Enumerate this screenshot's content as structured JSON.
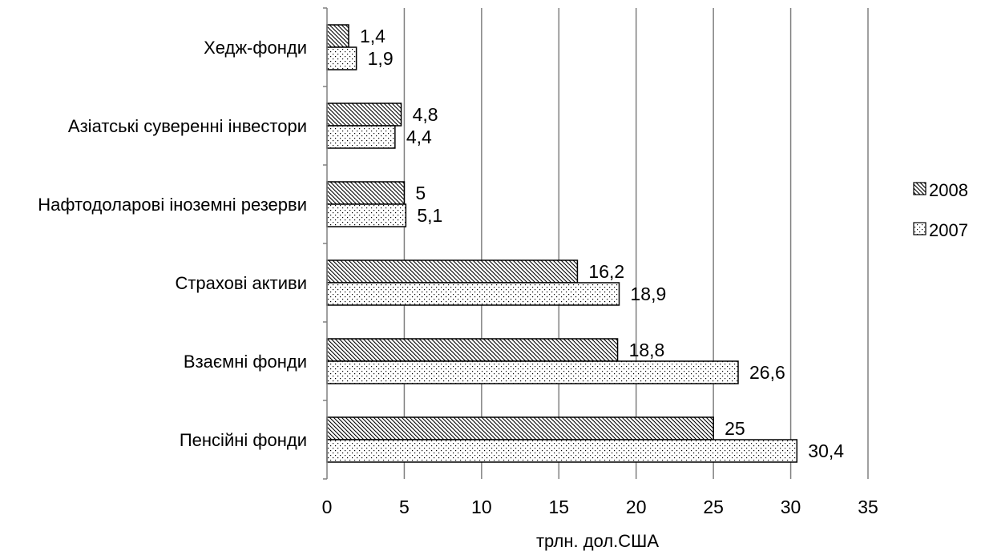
{
  "chart_data": {
    "type": "bar",
    "orientation": "horizontal",
    "categories": [
      "Хедж-фонди",
      "Азіатські суверенні інвестори",
      "Нафтодоларові іноземні резерви",
      "Страхові активи",
      "Взаємні фонди",
      "Пенсійні фонди"
    ],
    "series": [
      {
        "name": "2008",
        "pattern": "diagonal-hatch",
        "values": [
          1.4,
          4.8,
          5,
          16.2,
          18.8,
          25
        ],
        "labels": [
          "1,4",
          "4,8",
          "5",
          "16,2",
          "18,8",
          "25"
        ]
      },
      {
        "name": "2007",
        "pattern": "dots",
        "values": [
          1.9,
          4.4,
          5.1,
          18.9,
          26.6,
          30.4
        ],
        "labels": [
          "1,9",
          "4,4",
          "5,1",
          "18,9",
          "26,6",
          "30,4"
        ]
      }
    ],
    "xlabel": "трлн. дол.США",
    "xlim": [
      0,
      35
    ],
    "xticks": [
      "0",
      "5",
      "10",
      "15",
      "20",
      "25",
      "30",
      "35"
    ],
    "grid": true,
    "legend_position": "right"
  }
}
